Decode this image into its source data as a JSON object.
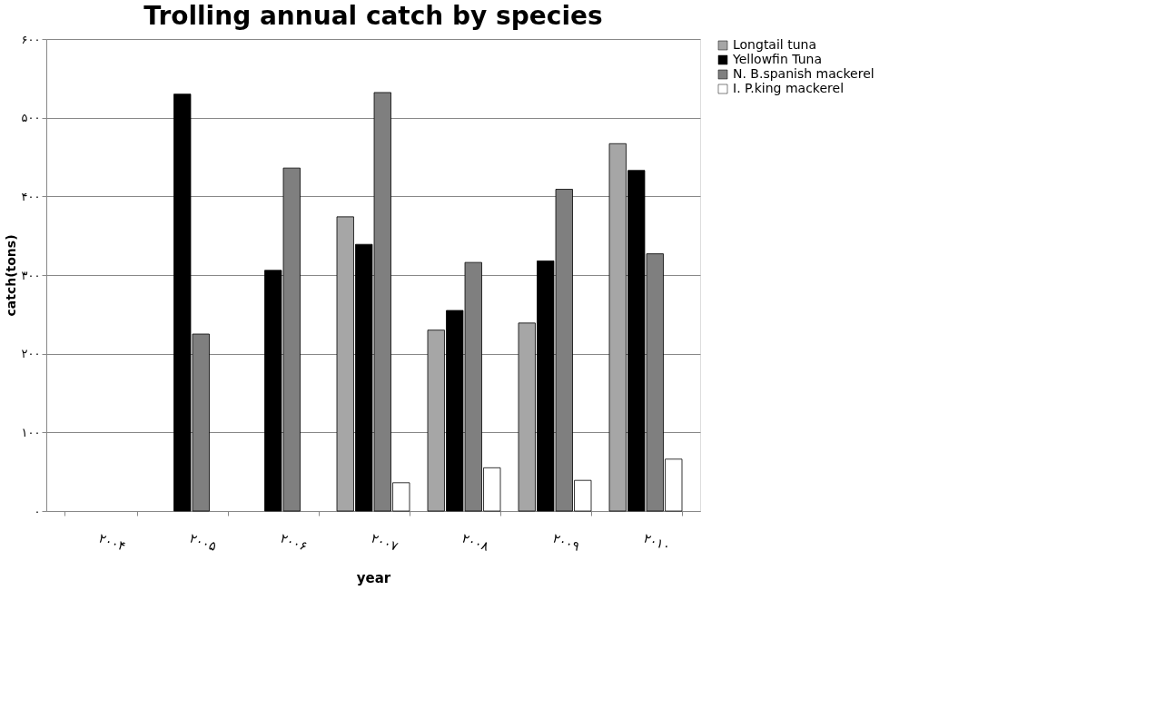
{
  "chart_data": {
    "type": "bar",
    "title": "Trolling annual catch by species",
    "xlabel": "year",
    "ylabel": "catch(tons)",
    "categories": [
      "۲۰۰۴",
      "۲۰۰۵",
      "۲۰۰۶",
      "۲۰۰۷",
      "۲۰۰۸",
      "۲۰۰۹",
      "۲۰۱۰"
    ],
    "series": [
      {
        "name": "Longtail tuna",
        "color": "#a6a6a6",
        "values": [
          null,
          null,
          null,
          374,
          230,
          239,
          467
        ]
      },
      {
        "name": "Yellowfin Tuna",
        "color": "#000000",
        "values": [
          null,
          530,
          306,
          339,
          255,
          318,
          433
        ]
      },
      {
        "name": "N. B.spanish mackerel",
        "color": "#7f7f7f",
        "values": [
          null,
          225,
          436,
          532,
          316,
          409,
          327
        ]
      },
      {
        "name": "I. P.king mackerel",
        "color": "#ffffff",
        "values": [
          null,
          null,
          null,
          36,
          55,
          39,
          66
        ]
      }
    ],
    "ylim": [
      0,
      600
    ],
    "yticks": [
      {
        "value": 0,
        "label": "۰"
      },
      {
        "value": 100,
        "label": "۱۰۰"
      },
      {
        "value": 200,
        "label": "۲۰۰"
      },
      {
        "value": 300,
        "label": "۳۰۰"
      },
      {
        "value": 400,
        "label": "۴۰۰"
      },
      {
        "value": 500,
        "label": "۵۰۰"
      },
      {
        "value": 600,
        "label": "۶۰۰"
      }
    ],
    "grid": "y",
    "legend": "right"
  }
}
